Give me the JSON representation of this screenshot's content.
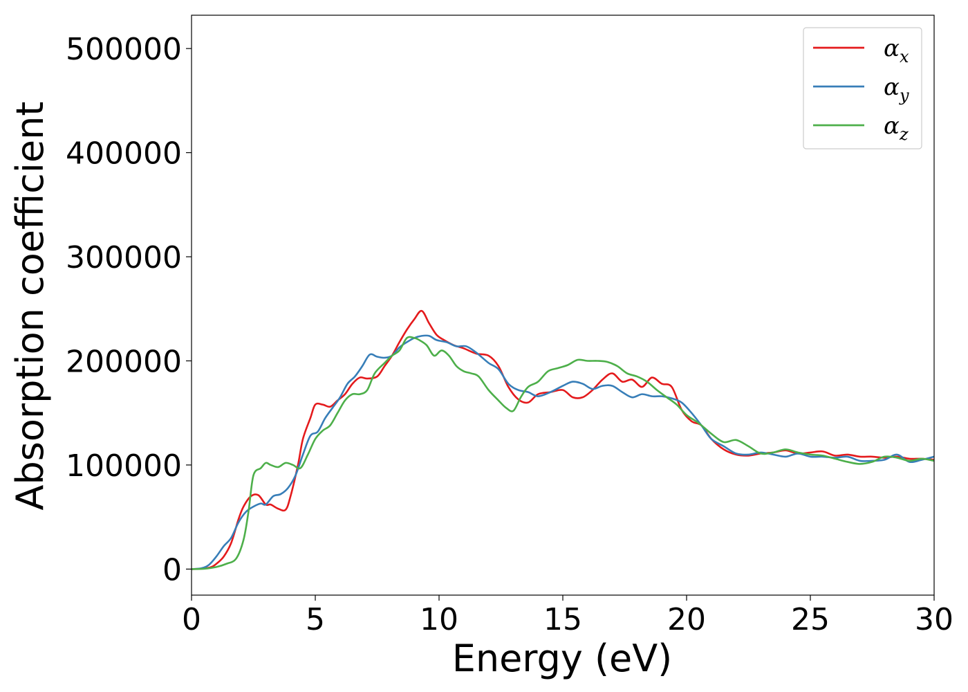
{
  "chart_data": {
    "type": "line",
    "title": "",
    "xlabel": "Energy (eV)",
    "ylabel": "Absorption coefficient",
    "xlim": [
      0,
      30
    ],
    "ylim": [
      -25000,
      532000
    ],
    "xticks": [
      0,
      5,
      10,
      15,
      20,
      25,
      30
    ],
    "yticks": [
      0,
      100000,
      200000,
      300000,
      400000,
      500000
    ],
    "grid": false,
    "legend_position": "top-right",
    "series": [
      {
        "name": "α",
        "subscript": "x",
        "color": "#e41a1c",
        "x": [
          0,
          0.5,
          0.8,
          1.0,
          1.3,
          1.6,
          1.9,
          2.1,
          2.4,
          2.7,
          3.0,
          3.2,
          3.5,
          3.8,
          4.0,
          4.3,
          4.5,
          4.8,
          5.0,
          5.3,
          5.6,
          5.9,
          6.2,
          6.5,
          6.8,
          7.1,
          7.5,
          7.8,
          8.1,
          8.4,
          8.7,
          9.0,
          9.3,
          9.6,
          9.9,
          10.2,
          10.6,
          11.0,
          11.5,
          12.0,
          12.4,
          12.8,
          13.2,
          13.6,
          14.0,
          14.5,
          15.0,
          15.4,
          15.8,
          16.2,
          16.6,
          17.0,
          17.4,
          17.8,
          18.2,
          18.6,
          19.0,
          19.4,
          19.8,
          20.2,
          20.6,
          21.0,
          21.5,
          22.0,
          22.5,
          23.0,
          23.5,
          24.0,
          24.5,
          25.0,
          25.5,
          26.0,
          26.5,
          27.0,
          27.5,
          28.0,
          28.5,
          29.0,
          29.5,
          30.0
        ],
        "values": [
          0,
          500,
          2000,
          5000,
          12000,
          25000,
          48000,
          60000,
          70000,
          71000,
          62000,
          62000,
          58000,
          57000,
          70000,
          100000,
          125000,
          145000,
          158000,
          158000,
          156000,
          162000,
          168000,
          178000,
          184000,
          183000,
          185000,
          195000,
          205000,
          218000,
          230000,
          240000,
          248000,
          236000,
          225000,
          220000,
          215000,
          212000,
          207000,
          205000,
          195000,
          175000,
          163000,
          160000,
          168000,
          170000,
          172000,
          165000,
          165000,
          172000,
          182000,
          188000,
          180000,
          182000,
          175000,
          184000,
          178000,
          175000,
          153000,
          142000,
          138000,
          125000,
          115000,
          110000,
          109000,
          111000,
          112000,
          114000,
          111000,
          112000,
          113000,
          109000,
          110000,
          108000,
          108000,
          107000,
          108000,
          106000,
          106000,
          105000
        ]
      },
      {
        "name": "α",
        "subscript": "y",
        "color": "#377eb8",
        "x": [
          0,
          0.4,
          0.7,
          1.0,
          1.3,
          1.6,
          1.9,
          2.2,
          2.5,
          2.8,
          3.0,
          3.3,
          3.6,
          3.9,
          4.2,
          4.5,
          4.8,
          5.1,
          5.4,
          5.7,
          6.0,
          6.3,
          6.6,
          6.9,
          7.2,
          7.5,
          7.8,
          8.1,
          8.4,
          8.7,
          9.0,
          9.3,
          9.6,
          9.9,
          10.3,
          10.7,
          11.1,
          11.5,
          12.0,
          12.4,
          12.8,
          13.2,
          13.6,
          14.0,
          14.5,
          15.0,
          15.4,
          15.8,
          16.2,
          16.6,
          17.0,
          17.4,
          17.8,
          18.2,
          18.6,
          19.0,
          19.4,
          19.8,
          20.2,
          20.6,
          21.0,
          21.5,
          22.0,
          22.5,
          23.0,
          23.5,
          24.0,
          24.5,
          25.0,
          25.5,
          26.0,
          26.5,
          27.0,
          27.5,
          28.0,
          28.5,
          29.0,
          29.5,
          30.0
        ],
        "values": [
          0,
          800,
          4000,
          12000,
          22000,
          30000,
          45000,
          55000,
          60000,
          63000,
          62000,
          70000,
          72000,
          78000,
          90000,
          110000,
          128000,
          132000,
          145000,
          155000,
          165000,
          178000,
          185000,
          195000,
          206000,
          204000,
          203000,
          205000,
          213000,
          218000,
          222000,
          224000,
          224000,
          220000,
          218000,
          214000,
          214000,
          208000,
          198000,
          192000,
          178000,
          172000,
          170000,
          166000,
          170000,
          176000,
          180000,
          178000,
          173000,
          176000,
          176000,
          170000,
          165000,
          168000,
          166000,
          166000,
          164000,
          160000,
          150000,
          138000,
          125000,
          118000,
          111000,
          110000,
          112000,
          110000,
          108000,
          111000,
          108000,
          108000,
          107000,
          108000,
          104000,
          104000,
          105000,
          110000,
          103000,
          105000,
          108000
        ]
      },
      {
        "name": "α",
        "subscript": "z",
        "color": "#4daf4a",
        "x": [
          0,
          0.5,
          1.0,
          1.4,
          1.8,
          2.1,
          2.3,
          2.5,
          2.8,
          3.0,
          3.2,
          3.5,
          3.8,
          4.1,
          4.4,
          4.7,
          5.0,
          5.3,
          5.6,
          5.9,
          6.2,
          6.5,
          6.8,
          7.1,
          7.4,
          7.8,
          8.1,
          8.4,
          8.7,
          9.0,
          9.2,
          9.5,
          9.8,
          10.1,
          10.4,
          10.7,
          11.0,
          11.3,
          11.6,
          12.0,
          12.4,
          12.7,
          13.0,
          13.3,
          13.6,
          14.0,
          14.4,
          14.8,
          15.2,
          15.6,
          16.0,
          16.4,
          16.8,
          17.2,
          17.6,
          18.0,
          18.4,
          18.8,
          19.2,
          19.6,
          20.0,
          20.5,
          21.0,
          21.5,
          22.0,
          22.5,
          23.0,
          23.5,
          24.0,
          24.5,
          25.0,
          25.5,
          26.0,
          26.5,
          27.0,
          27.5,
          28.0,
          28.5,
          29.0,
          29.5,
          30.0
        ],
        "values": [
          0,
          300,
          2000,
          5000,
          10000,
          28000,
          55000,
          90000,
          97000,
          102000,
          100000,
          98000,
          102000,
          100000,
          97000,
          110000,
          125000,
          133000,
          138000,
          150000,
          162000,
          168000,
          168000,
          172000,
          188000,
          198000,
          205000,
          210000,
          222000,
          222000,
          220000,
          215000,
          205000,
          210000,
          205000,
          195000,
          190000,
          188000,
          185000,
          172000,
          162000,
          155000,
          152000,
          165000,
          175000,
          180000,
          190000,
          193000,
          196000,
          201000,
          200000,
          200000,
          199000,
          195000,
          188000,
          185000,
          180000,
          172000,
          165000,
          158000,
          148000,
          140000,
          130000,
          122000,
          124000,
          118000,
          111000,
          112000,
          115000,
          112000,
          110000,
          109000,
          106000,
          103000,
          101000,
          103000,
          108000,
          107000,
          104000,
          106000,
          104000
        ]
      }
    ]
  }
}
